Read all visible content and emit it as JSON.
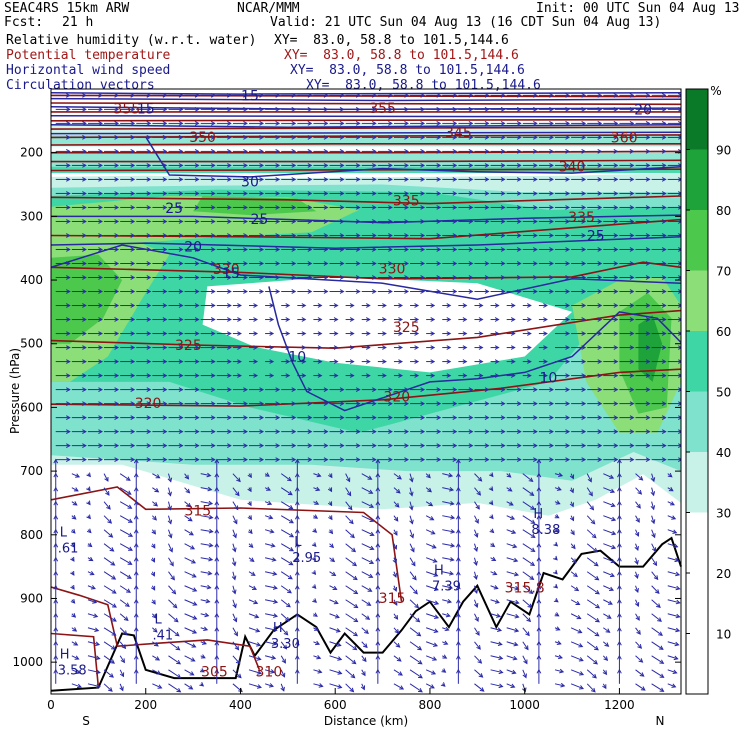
{
  "header": {
    "title": "SEAC4RS 15km ARW",
    "center": "NCAR/MMM",
    "init": "Init: 00 UTC Sun 04 Aug 13",
    "fcst_label": "Fcst:",
    "fcst_value": "21 h",
    "valid": "Valid: 21 UTC Sun 04 Aug 13 (16 CDT Sun 04 Aug 13)"
  },
  "legend_lines": [
    {
      "field": "Relative humidity (w.r.t. water)",
      "xy": "XY=  83.0, 58.8 to 101.5,144.6",
      "color": "#000000"
    },
    {
      "field": "Potential temperature",
      "xy": "XY=  83.0, 58.8 to 101.5,144.6",
      "color": "#a01818"
    },
    {
      "field": "Horizontal wind speed",
      "xy": "XY=  83.0, 58.8 to 101.5,144.6",
      "color": "#1a1a8c"
    },
    {
      "field": "Circulation vectors",
      "xy": "XY=  83.0, 58.8 to 101.5,144.6",
      "color": "#1a1a8c"
    }
  ],
  "chart_data": {
    "type": "heatmap",
    "xlabel": "Distance (km)",
    "ylabel": "Pressure (hPa)",
    "xlim": [
      0,
      1330
    ],
    "ylim": [
      1050,
      100
    ],
    "x_ticks": [
      0,
      200,
      400,
      600,
      800,
      1000,
      1200
    ],
    "y_ticks": [
      200,
      300,
      400,
      500,
      600,
      700,
      800,
      900,
      1000
    ],
    "x_end_labels": {
      "left": "S",
      "right": "N"
    },
    "colorbar": {
      "unit": "%",
      "levels": [
        10,
        20,
        30,
        40,
        50,
        60,
        70,
        80,
        90
      ],
      "colors": [
        "#ffffff",
        "#ffffff",
        "#ffffff",
        "#c8f2e8",
        "#7ee2cc",
        "#3fd6a6",
        "#8cde78",
        "#4cc84c",
        "#1ea33a",
        "#0a7a28"
      ]
    },
    "theta_labels": [
      {
        "x": 160,
        "p": 131,
        "text": "355"
      },
      {
        "x": 700,
        "p": 130,
        "text": "355"
      },
      {
        "x": 860,
        "p": 168,
        "text": "345"
      },
      {
        "x": 320,
        "p": 175,
        "text": "350"
      },
      {
        "x": 1210,
        "p": 176,
        "text": "360"
      },
      {
        "x": 1100,
        "p": 222,
        "text": "340"
      },
      {
        "x": 750,
        "p": 275,
        "text": "335"
      },
      {
        "x": 1120,
        "p": 301,
        "text": "335"
      },
      {
        "x": 370,
        "p": 383,
        "text": "330"
      },
      {
        "x": 720,
        "p": 382,
        "text": "330"
      },
      {
        "x": 290,
        "p": 502,
        "text": "325"
      },
      {
        "x": 750,
        "p": 474,
        "text": "325"
      },
      {
        "x": 205,
        "p": 593,
        "text": "320"
      },
      {
        "x": 730,
        "p": 583,
        "text": "320"
      },
      {
        "x": 310,
        "p": 762,
        "text": "315"
      },
      {
        "x": 720,
        "p": 899,
        "text": "315"
      },
      {
        "x": 1000,
        "p": 883,
        "text": "315.8"
      },
      {
        "x": 345,
        "p": 1015,
        "text": "305"
      },
      {
        "x": 460,
        "p": 1015,
        "text": "310"
      }
    ],
    "wind_labels": [
      {
        "x": 200,
        "p": 131,
        "text": "15"
      },
      {
        "x": 420,
        "p": 110,
        "text": "15"
      },
      {
        "x": 1250,
        "p": 132,
        "text": "20"
      },
      {
        "x": 420,
        "p": 245,
        "text": "30"
      },
      {
        "x": 260,
        "p": 287,
        "text": "25"
      },
      {
        "x": 440,
        "p": 304,
        "text": "25"
      },
      {
        "x": 1150,
        "p": 330,
        "text": "25"
      },
      {
        "x": 300,
        "p": 347,
        "text": "20"
      },
      {
        "x": 380,
        "p": 389,
        "text": "15"
      },
      {
        "x": 520,
        "p": 520,
        "text": "10"
      },
      {
        "x": 1050,
        "p": 553,
        "text": "10"
      }
    ],
    "lh_markers": [
      {
        "x": 10,
        "p": 815,
        "type": "L",
        "value": ".61"
      },
      {
        "x": 505,
        "p": 830,
        "type": "L",
        "value": "2.95"
      },
      {
        "x": 1010,
        "p": 786,
        "type": "H",
        "value": "8.38"
      },
      {
        "x": 800,
        "p": 875,
        "type": "H",
        "value": "7.39"
      },
      {
        "x": 210,
        "p": 952,
        "type": "L",
        "value": ".41"
      },
      {
        "x": 460,
        "p": 965,
        "type": "H",
        "value": "3.30"
      },
      {
        "x": 10,
        "p": 1007,
        "type": "H",
        "value": "3.58"
      }
    ]
  }
}
